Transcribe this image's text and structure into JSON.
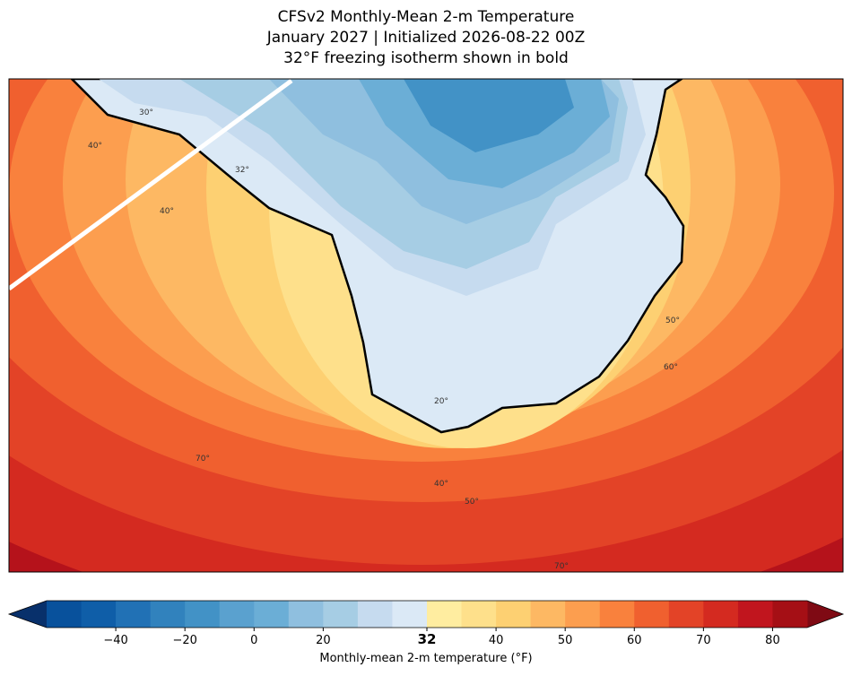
{
  "header": {
    "title_lines": [
      "CFSv2 Monthly-Mean 2-m Temperature",
      "January 2027 | Initialized 2026-08-22 00Z",
      "32°F freezing isotherm shown in bold"
    ]
  },
  "map": {
    "contour_labels": [
      "30°",
      "40°",
      "32°",
      "40°",
      "50°",
      "60°",
      "20°",
      "70°",
      "40°",
      "50°",
      "70°"
    ]
  },
  "colorbar": {
    "label": "Monthly-mean 2-m temperature (°F)",
    "levels": [
      -60,
      -50,
      -40,
      -30,
      -20,
      -10,
      0,
      10,
      20,
      24,
      28,
      32,
      36,
      40,
      45,
      50,
      55,
      60,
      65,
      70,
      75,
      80,
      85
    ],
    "colors": [
      "#08519c",
      "#0f5ea8",
      "#2171b5",
      "#3182bd",
      "#4292c6",
      "#5aa1cf",
      "#6baed6",
      "#8fbfdf",
      "#a6cde4",
      "#c6dbef",
      "#dbe9f6",
      "#ffeda0",
      "#fee08b",
      "#fdd072",
      "#fdb863",
      "#fc9e4f",
      "#f9813d",
      "#f0602f",
      "#e34327",
      "#d42a20",
      "#c1151e",
      "#a50f15"
    ],
    "under_color": "#08306b",
    "over_color": "#7f0a14",
    "ticks": [
      {
        "value": -40,
        "label": "−40"
      },
      {
        "value": -20,
        "label": "−20"
      },
      0,
      20,
      32,
      40,
      50,
      60,
      70,
      80
    ],
    "highlight_tick": 32
  }
}
